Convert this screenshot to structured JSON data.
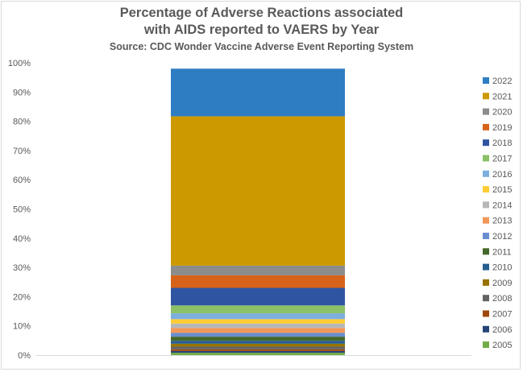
{
  "chart_data": {
    "type": "bar",
    "stacked": true,
    "title": "Percentage of Adverse Reactions associated with AIDS reported to VAERS by Year",
    "title_lines": [
      "Percentage of Adverse Reactions associated",
      "with AIDS reported to VAERS by Year"
    ],
    "subtitle": "Source: CDC Wonder Vaccine Adverse Event Reporting System",
    "xlabel": "",
    "ylabel": "",
    "categories": [
      ""
    ],
    "ylim": [
      0,
      100
    ],
    "yticks": [
      "0%",
      "10%",
      "20%",
      "30%",
      "40%",
      "50%",
      "60%",
      "70%",
      "80%",
      "90%",
      "100%"
    ],
    "grid": false,
    "legend_position": "right",
    "series": [
      {
        "name": "2005",
        "values": [
          0.8
        ],
        "color": "#70ad47"
      },
      {
        "name": "2006",
        "values": [
          0.6
        ],
        "color": "#264478"
      },
      {
        "name": "2007",
        "values": [
          0.6
        ],
        "color": "#9e480e"
      },
      {
        "name": "2008",
        "values": [
          0.9
        ],
        "color": "#636363"
      },
      {
        "name": "2009",
        "values": [
          1.0
        ],
        "color": "#997300"
      },
      {
        "name": "2010",
        "values": [
          1.0
        ],
        "color": "#255e91"
      },
      {
        "name": "2011",
        "values": [
          1.4
        ],
        "color": "#43682b"
      },
      {
        "name": "2012",
        "values": [
          1.3
        ],
        "color": "#698ed0"
      },
      {
        "name": "2013",
        "values": [
          1.7
        ],
        "color": "#f1975a"
      },
      {
        "name": "2014",
        "values": [
          1.5
        ],
        "color": "#b7b7b7"
      },
      {
        "name": "2015",
        "values": [
          1.5
        ],
        "color": "#ffcd33"
      },
      {
        "name": "2016",
        "values": [
          2.0
        ],
        "color": "#7cafdd"
      },
      {
        "name": "2017",
        "values": [
          2.7
        ],
        "color": "#8cc168"
      },
      {
        "name": "2018",
        "values": [
          6.0
        ],
        "color": "#2f55a2"
      },
      {
        "name": "2019",
        "values": [
          4.3
        ],
        "color": "#d7631a"
      },
      {
        "name": "2020",
        "values": [
          3.3
        ],
        "color": "#8c8c8c"
      },
      {
        "name": "2021",
        "values": [
          51.1
        ],
        "color": "#cc9a00"
      },
      {
        "name": "2022",
        "values": [
          16.3
        ],
        "color": "#2e7dc3"
      }
    ]
  }
}
